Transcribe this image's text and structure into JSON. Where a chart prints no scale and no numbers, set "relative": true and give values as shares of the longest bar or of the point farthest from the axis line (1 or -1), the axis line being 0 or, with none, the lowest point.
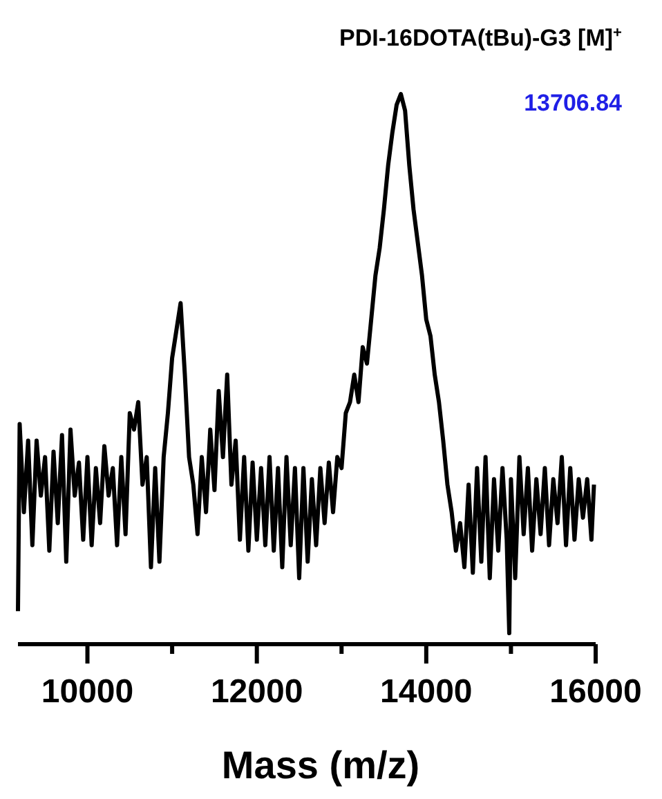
{
  "chart_data": {
    "type": "line",
    "title": "PDI-16DOTA(tBu)-G3 [M]$^{+}$",
    "xlabel": "Mass (m/z)",
    "relative": true,
    "color": "#000000",
    "marker": "none",
    "line_style": "solid",
    "grid": false,
    "tick_labels": "x",
    "annotations": [
      "13706.84"
    ],
    "xlim": [
      9180,
      16000
    ],
    "xticks": [
      10000,
      {
        "value": 11000,
        "label": null
      },
      12000,
      {
        "value": 13000,
        "label": null
      },
      14000,
      {
        "value": 15000,
        "label": null
      },
      16000
    ],
    "x": [
      9180,
      9200,
      9250,
      9300,
      9350,
      9400,
      9450,
      9500,
      9550,
      9600,
      9650,
      9700,
      9750,
      9800,
      9850,
      9900,
      9950,
      10000,
      10050,
      10100,
      10150,
      10200,
      10250,
      10300,
      10350,
      10400,
      10450,
      10500,
      10550,
      10600,
      10650,
      10700,
      10750,
      10800,
      10850,
      10900,
      10950,
      11000,
      11050,
      11100,
      11150,
      11200,
      11250,
      11300,
      11350,
      11400,
      11450,
      11500,
      11550,
      11600,
      11650,
      11700,
      11750,
      11800,
      11850,
      11900,
      11950,
      12000,
      12050,
      12100,
      12150,
      12200,
      12250,
      12300,
      12350,
      12400,
      12450,
      12500,
      12550,
      12600,
      12650,
      12700,
      12750,
      12800,
      12850,
      12900,
      12950,
      13000,
      13050,
      13100,
      13150,
      13200,
      13250,
      13300,
      13350,
      13400,
      13450,
      13500,
      13550,
      13600,
      13650,
      13700,
      13750,
      13800,
      13850,
      13900,
      13950,
      14000,
      14050,
      14100,
      14150,
      14200,
      14250,
      14300,
      14350,
      14400,
      14450,
      14500,
      14550,
      14600,
      14650,
      14700,
      14750,
      14800,
      14850,
      14900,
      14950,
      14980,
      15000,
      15050,
      15100,
      15150,
      15200,
      15250,
      15300,
      15350,
      15400,
      15450,
      15500,
      15550,
      15600,
      15650,
      15700,
      15750,
      15800,
      15850,
      15900,
      15950,
      15980
    ],
    "values": [
      0.06,
      0.4,
      0.24,
      0.37,
      0.18,
      0.37,
      0.27,
      0.34,
      0.17,
      0.35,
      0.22,
      0.38,
      0.15,
      0.39,
      0.27,
      0.33,
      0.19,
      0.34,
      0.18,
      0.32,
      0.22,
      0.36,
      0.27,
      0.32,
      0.18,
      0.34,
      0.2,
      0.42,
      0.39,
      0.44,
      0.29,
      0.34,
      0.14,
      0.32,
      0.15,
      0.34,
      0.42,
      0.52,
      0.57,
      0.62,
      0.49,
      0.34,
      0.29,
      0.2,
      0.34,
      0.24,
      0.39,
      0.28,
      0.46,
      0.34,
      0.49,
      0.29,
      0.37,
      0.19,
      0.34,
      0.17,
      0.33,
      0.19,
      0.32,
      0.18,
      0.34,
      0.17,
      0.32,
      0.14,
      0.34,
      0.18,
      0.32,
      0.12,
      0.32,
      0.15,
      0.3,
      0.18,
      0.32,
      0.22,
      0.33,
      0.24,
      0.34,
      0.32,
      0.42,
      0.44,
      0.49,
      0.44,
      0.54,
      0.51,
      0.59,
      0.67,
      0.72,
      0.79,
      0.87,
      0.93,
      0.98,
      1,
      0.97,
      0.87,
      0.79,
      0.73,
      0.67,
      0.59,
      0.56,
      0.49,
      0.44,
      0.37,
      0.29,
      0.24,
      0.17,
      0.22,
      0.14,
      0.29,
      0.13,
      0.32,
      0.15,
      0.34,
      0.12,
      0.3,
      0.17,
      0.32,
      0.19,
      0.02,
      0.3,
      0.12,
      0.34,
      0.2,
      0.32,
      0.17,
      0.3,
      0.2,
      0.32,
      0.18,
      0.3,
      0.22,
      0.34,
      0.18,
      0.32,
      0.19,
      0.3,
      0.23,
      0.3,
      0.19,
      0.29
    ]
  }
}
